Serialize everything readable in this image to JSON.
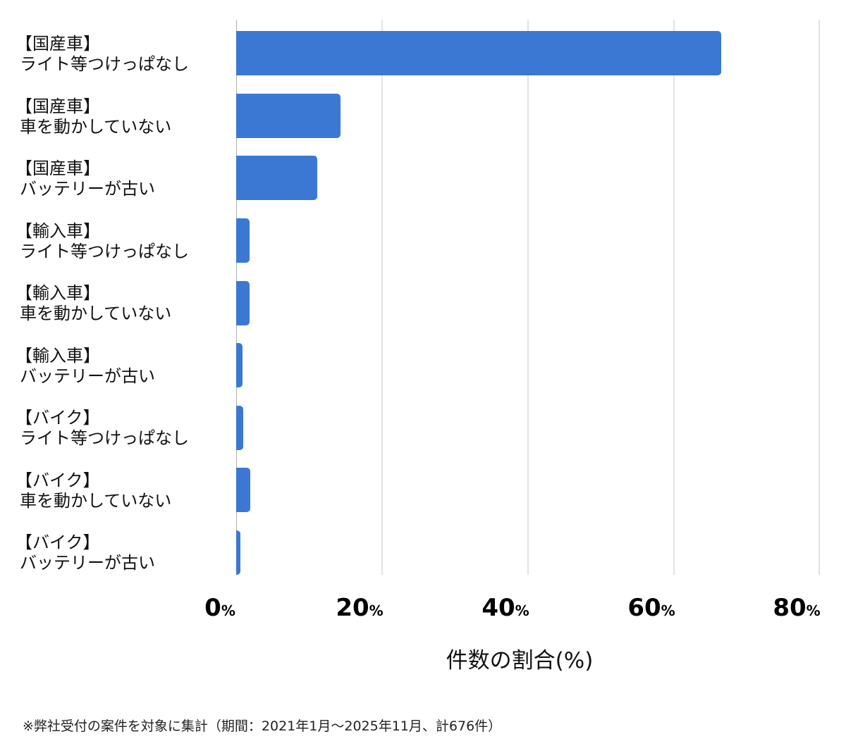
{
  "chart_data": {
    "type": "bar",
    "orientation": "horizontal",
    "title": "",
    "categories": [
      "【国産車】ライト等つけっぱなし",
      "【国産車】車を動かしていない",
      "【国産車】バッテリーが古い",
      "【輸入車】ライト等つけっぱなし",
      "【輸入車】車を動かしていない",
      "【輸入車】バッテリーが古い",
      "【バイク】ライト等つけっぱなし",
      "【バイク】車を動かしていない",
      "【バイク】バッテリーが古い"
    ],
    "values": [
      66.6,
      14.3,
      11.1,
      1.8,
      1.8,
      0.9,
      1.0,
      1.9,
      0.6
    ],
    "xlabel": "件数の割合(%)",
    "ylabel": "",
    "xlim": [
      0,
      80
    ],
    "xticks": [
      0,
      20,
      40,
      60,
      80
    ],
    "tick_suffix": "%",
    "grid": true,
    "bar_color": "#3b78d4",
    "legend": null
  },
  "labels": [
    {
      "group": "【国産車】",
      "item": "ライト等つけっぱなし"
    },
    {
      "group": "【国産車】",
      "item": "車を動かしていない"
    },
    {
      "group": "【国産車】",
      "item": "バッテリーが古い"
    },
    {
      "group": "【輸入車】",
      "item": "ライト等つけっぱなし"
    },
    {
      "group": "【輸入車】",
      "item": "車を動かしていない"
    },
    {
      "group": "【輸入車】",
      "item": "バッテリーが古い"
    },
    {
      "group": "【バイク】",
      "item": "ライト等つけっぱなし"
    },
    {
      "group": "【バイク】",
      "item": "車を動かしていない"
    },
    {
      "group": "【バイク】",
      "item": "バッテリーが古い"
    }
  ],
  "ticks": [
    {
      "num": "0",
      "pct": "%"
    },
    {
      "num": "20",
      "pct": "%"
    },
    {
      "num": "40",
      "pct": "%"
    },
    {
      "num": "60",
      "pct": "%"
    },
    {
      "num": "80",
      "pct": "%"
    }
  ],
  "axis_title": "件数の割合(%)",
  "footnote": "※弊社受付の案件を対象に集計（期間：2021年1月～2025年11月、計676件）"
}
